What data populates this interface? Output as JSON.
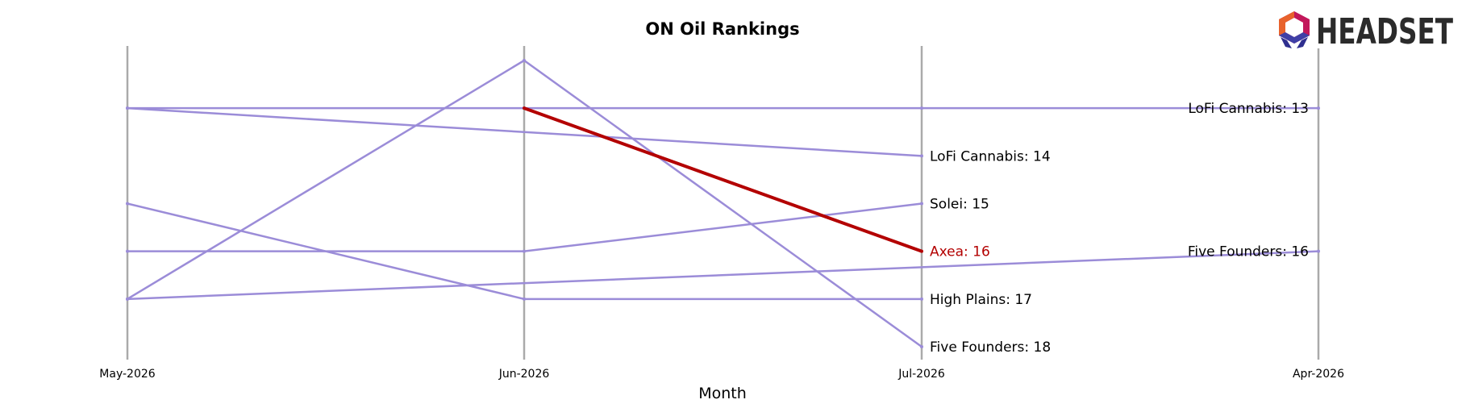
{
  "chart_data": {
    "type": "line",
    "title": "ON Oil Rankings",
    "xlabel": "Month",
    "ylabel": "",
    "categories": [
      "May-2026",
      "Jun-2026",
      "Jul-2026",
      "Apr-2026"
    ],
    "y_inverted": true,
    "ylim": [
      18.9,
      12.0
    ],
    "grid": false,
    "highlight_color": "#b30000",
    "series_color": "#9b8cd8",
    "axis_color": "#aaaaaa",
    "series": [
      {
        "values": [
          13,
          13,
          13,
          13
        ]
      },
      {
        "values": [
          13,
          null,
          14,
          null
        ]
      },
      {
        "values": [
          15,
          17,
          17,
          null
        ]
      },
      {
        "values": [
          16,
          16,
          15,
          null
        ]
      },
      {
        "values": [
          17,
          12,
          18,
          null
        ]
      },
      {
        "values": [
          17,
          null,
          null,
          16
        ]
      },
      {
        "values": [
          null,
          13,
          16,
          null
        ],
        "highlight": true
      }
    ],
    "labels": [
      {
        "text": "LoFi Cannabis: 13",
        "category": 3,
        "value": 13,
        "anchor": "end"
      },
      {
        "text": "LoFi Cannabis: 14",
        "category": 2,
        "value": 14,
        "anchor": "start"
      },
      {
        "text": "Solei: 15",
        "category": 2,
        "value": 15,
        "anchor": "start"
      },
      {
        "text": "Axea: 16",
        "category": 2,
        "value": 16,
        "anchor": "start",
        "highlight": true
      },
      {
        "text": "Five Founders: 16",
        "category": 3,
        "value": 16,
        "anchor": "end"
      },
      {
        "text": "High Plains: 17",
        "category": 2,
        "value": 17,
        "anchor": "start"
      },
      {
        "text": "Five Founders: 18",
        "category": 2,
        "value": 18,
        "anchor": "start"
      }
    ]
  },
  "brand": {
    "name": "HEADSET",
    "logo_icon": "headset-hexagon-logo-icon"
  }
}
